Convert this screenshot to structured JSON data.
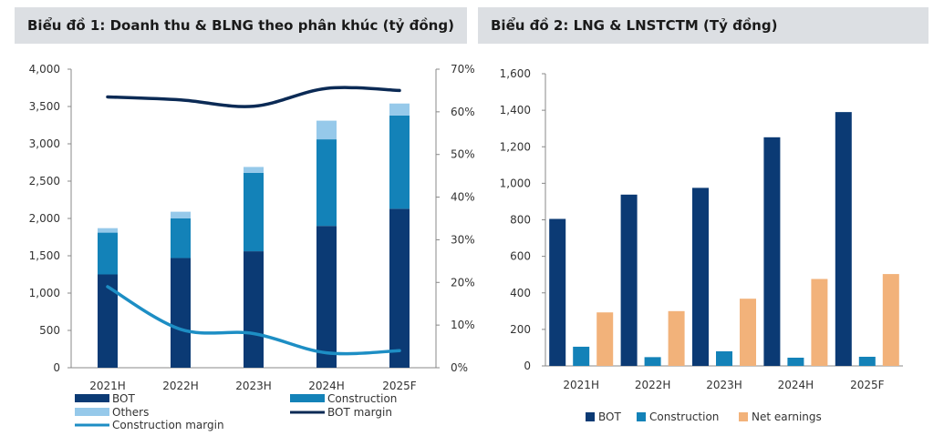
{
  "titles": {
    "chart1": "Biểu đồ 1: Doanh thu & BLNG theo phân khúc (tỷ đồng)",
    "chart2": "Biểu đồ 2: LNG & LNSTCTM (Tỷ đồng)"
  },
  "colors": {
    "bot": "#0b3a74",
    "construction": "#1382b8",
    "others": "#96c9ea",
    "bot_margin": "#0b2a55",
    "construction_margin": "#1d8ec4",
    "net_earnings": "#f2b27a",
    "axis": "#888888"
  },
  "chart_data": [
    {
      "type": "bar",
      "stacked": true,
      "categories": [
        "2021H",
        "2022H",
        "2023H",
        "2024H",
        "2025F"
      ],
      "series": [
        {
          "name": "BOT",
          "values": [
            1250,
            1470,
            1560,
            1900,
            2130
          ]
        },
        {
          "name": "Construction",
          "values": [
            560,
            530,
            1050,
            1160,
            1250
          ]
        },
        {
          "name": "Others",
          "values": [
            60,
            90,
            80,
            250,
            160
          ]
        }
      ],
      "lines": [
        {
          "name": "BOT margin",
          "axis": "right",
          "values": [
            63.5,
            62.8,
            61.3,
            65.5,
            65.0
          ]
        },
        {
          "name": "Construction margin",
          "axis": "right",
          "values": [
            19,
            9,
            8,
            3.5,
            4
          ]
        }
      ],
      "ylim": [
        0,
        4000
      ],
      "yticks": [
        "0",
        "500",
        "1,000",
        "1,500",
        "2,000",
        "2,500",
        "3,000",
        "3,500",
        "4,000"
      ],
      "y2lim": [
        0,
        70
      ],
      "y2ticks": [
        "0%",
        "10%",
        "20%",
        "30%",
        "40%",
        "50%",
        "60%",
        "70%"
      ],
      "legend": "bottom",
      "grid": false
    },
    {
      "type": "bar",
      "categories": [
        "2021H",
        "2022H",
        "2023H",
        "2024H",
        "2025F"
      ],
      "series": [
        {
          "name": "BOT",
          "values": [
            805,
            938,
            975,
            1252,
            1390
          ]
        },
        {
          "name": "Construction",
          "values": [
            105,
            48,
            80,
            45,
            50
          ]
        },
        {
          "name": "Net earnings",
          "values": [
            293,
            300,
            368,
            476,
            503
          ]
        }
      ],
      "ylim": [
        0,
        1600
      ],
      "yticks": [
        "0",
        "200",
        "400",
        "600",
        "800",
        "1,000",
        "1,200",
        "1,400",
        "1,600"
      ],
      "legend": "bottom",
      "grid": false
    }
  ]
}
